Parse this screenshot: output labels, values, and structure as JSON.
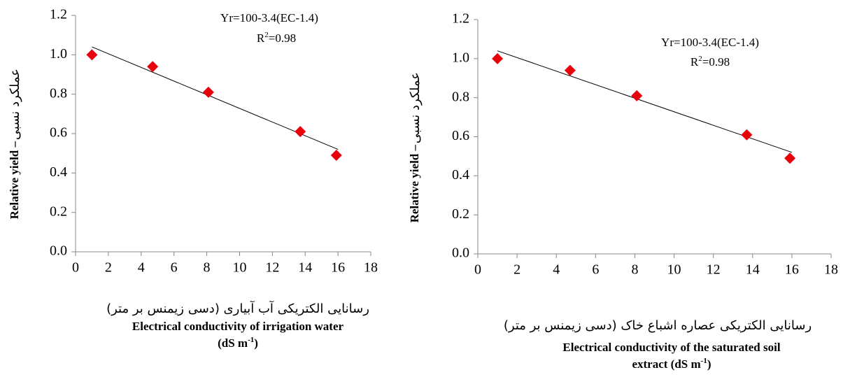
{
  "chart_data": [
    {
      "type": "scatter",
      "x": [
        1,
        4.7,
        8.1,
        13.7,
        15.9
      ],
      "values": [
        1.0,
        0.94,
        0.81,
        0.61,
        0.49
      ],
      "color": "#e8000b",
      "trendline": {
        "x": [
          1,
          16
        ],
        "y": [
          1.04,
          0.52
        ],
        "color": "#000000"
      },
      "equation": "Yr=100-3.4(EC-1.4)",
      "r2": {
        "prefix": "R",
        "sup": "2",
        "suffix": "=0.98"
      },
      "ylabel_en": "Relative yield –",
      "ylabel_fa": "عملکرد نسبی",
      "xlabel_fa": "رسانایی الکتریکی آب آبیاری  (دسی زیمنس بر متر)",
      "xlabel_en": [
        "Electrical conductivity of  irrigation water"
      ],
      "xlabel_unit": {
        "prefix": "(dS m",
        "sup": "-1",
        "suffix": ")"
      },
      "xlim": [
        0,
        18
      ],
      "xticks": [
        0,
        2,
        4,
        6,
        8,
        10,
        12,
        14,
        16,
        18
      ],
      "ylim": [
        0,
        1.2
      ],
      "yticks": [
        {
          "value": 0,
          "label": "0.0"
        },
        0.2,
        0.4,
        0.6,
        0.8,
        {
          "value": 1,
          "label": "1.0"
        },
        1.2
      ],
      "grid": false
    },
    {
      "type": "scatter",
      "x": [
        1,
        4.7,
        8.1,
        13.7,
        15.9
      ],
      "values": [
        1.0,
        0.94,
        0.81,
        0.61,
        0.49
      ],
      "color": "#e8000b",
      "trendline": {
        "x": [
          1,
          16
        ],
        "y": [
          1.04,
          0.52
        ],
        "color": "#000000"
      },
      "equation": "Yr=100-3.4(EC-1.4)",
      "r2": {
        "prefix": "R",
        "sup": "2",
        "suffix": "=0.98"
      },
      "ylabel_en": "Relative yield –",
      "ylabel_fa": "عملکرد نسبی",
      "xlabel_fa": "رسانایی الکتریکی عصاره اشباع خاک (دسی زیمنس بر متر)",
      "xlabel_en": [
        "Electrical conductivity of  the saturated soil"
      ],
      "xlabel_unit": {
        "prefix": "extract (dS m",
        "sup": "-1",
        "suffix": ")"
      },
      "xlim": [
        0,
        18
      ],
      "xticks": [
        0,
        2,
        4,
        6,
        8,
        10,
        12,
        14,
        16,
        18
      ],
      "ylim": [
        0,
        1.2
      ],
      "yticks": [
        {
          "value": 0,
          "label": "0.0"
        },
        0.2,
        0.4,
        0.6,
        0.8,
        {
          "value": 1,
          "label": "1.0"
        },
        1.2
      ],
      "grid": false
    }
  ]
}
